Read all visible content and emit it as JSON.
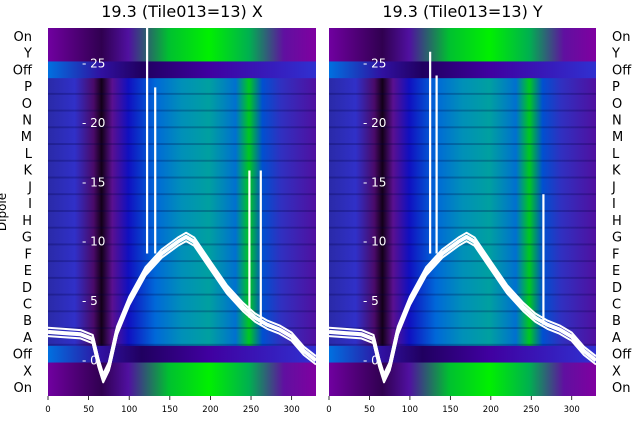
{
  "chart_data": [
    {
      "type": "heatmap",
      "title": "19.3 (Tile013=13) X",
      "ylabel": "Dipole",
      "dipole_labels": [
        "On",
        "Y",
        "Off",
        "P",
        "O",
        "N",
        "M",
        "L",
        "K",
        "J",
        "I",
        "H",
        "G",
        "F",
        "E",
        "D",
        "C",
        "B",
        "A",
        "Off",
        "X",
        "On"
      ],
      "dipole_label_side": "left",
      "x_ticks": [
        0,
        50,
        100,
        150,
        200,
        250,
        300
      ],
      "xlim": [
        0,
        330
      ],
      "overlay_y_ticks": [
        25,
        20,
        15,
        10,
        5,
        0
      ],
      "overlay_ylim": [
        -3,
        28
      ],
      "overlay_series": {
        "x": [
          0,
          20,
          40,
          55,
          62,
          68,
          75,
          85,
          100,
          120,
          140,
          160,
          170,
          180,
          200,
          220,
          240,
          255,
          270,
          285,
          300,
          315,
          330
        ],
        "y": [
          2.4,
          2.3,
          2.2,
          1.8,
          -0.2,
          -1.5,
          -0.5,
          2.5,
          5.0,
          7.5,
          9.0,
          10.0,
          10.4,
          10.0,
          8.0,
          6.0,
          4.5,
          3.6,
          3.0,
          2.6,
          2.0,
          0.8,
          0.0
        ]
      },
      "overlay_spikes": [
        {
          "x": 122,
          "y": 28
        },
        {
          "x": 132,
          "y": 23
        },
        {
          "x": 248,
          "y": 16
        },
        {
          "x": 262,
          "y": 16
        }
      ]
    },
    {
      "type": "heatmap",
      "title": "19.3 (Tile013=13) Y",
      "ylabel": "",
      "dipole_labels": [
        "On",
        "Y",
        "Off",
        "P",
        "O",
        "N",
        "M",
        "L",
        "K",
        "J",
        "I",
        "H",
        "G",
        "F",
        "E",
        "D",
        "C",
        "B",
        "A",
        "Off",
        "X",
        "On"
      ],
      "dipole_label_side": "right",
      "x_ticks": [
        0,
        50,
        100,
        150,
        200,
        250,
        300
      ],
      "xlim": [
        0,
        330
      ],
      "overlay_y_ticks": [
        25,
        20,
        15,
        10,
        5,
        0
      ],
      "overlay_ylim": [
        -3,
        28
      ],
      "overlay_series": {
        "x": [
          0,
          20,
          40,
          55,
          62,
          68,
          75,
          85,
          100,
          120,
          140,
          160,
          170,
          180,
          200,
          220,
          240,
          255,
          270,
          285,
          300,
          315,
          330
        ],
        "y": [
          2.4,
          2.3,
          2.2,
          1.8,
          -0.2,
          -1.5,
          -0.5,
          2.5,
          5.0,
          7.5,
          9.0,
          10.0,
          10.4,
          10.0,
          8.0,
          6.0,
          4.5,
          3.6,
          3.0,
          2.6,
          2.0,
          0.8,
          0.0
        ]
      },
      "overlay_spikes": [
        {
          "x": 125,
          "y": 26
        },
        {
          "x": 133,
          "y": 24
        },
        {
          "x": 265,
          "y": 14
        }
      ]
    }
  ]
}
